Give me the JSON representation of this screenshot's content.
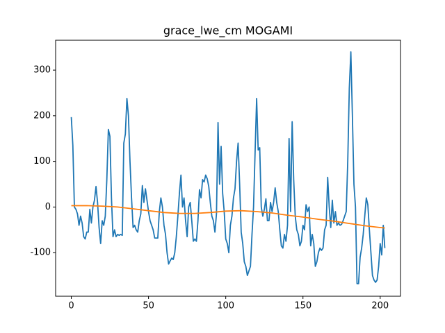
{
  "chart_data": {
    "type": "line",
    "title": "grace_lwe_cm MOGAMI",
    "xlim": [
      -10.15,
      213.15
    ],
    "xticks": [
      0,
      50,
      100,
      150,
      200
    ],
    "ylim": [
      -195.5,
      365.5
    ],
    "yticks": [
      -100,
      0,
      100,
      200,
      300
    ],
    "series": [
      {
        "color": "#1f77b4",
        "x": [
          0,
          1,
          2,
          3,
          4,
          5,
          6,
          7,
          8,
          9,
          10,
          11,
          12,
          13,
          14,
          15,
          16,
          17,
          18,
          19,
          20,
          21,
          22,
          23,
          24,
          25,
          26,
          27,
          28,
          29,
          30,
          31,
          32,
          33,
          34,
          35,
          36,
          37,
          38,
          39,
          40,
          41,
          42,
          43,
          44,
          45,
          46,
          47,
          48,
          49,
          50,
          51,
          52,
          53,
          54,
          55,
          56,
          57,
          58,
          59,
          60,
          61,
          62,
          63,
          64,
          65,
          66,
          67,
          68,
          69,
          70,
          71,
          72,
          73,
          74,
          75,
          76,
          77,
          78,
          79,
          80,
          81,
          82,
          83,
          84,
          85,
          86,
          87,
          88,
          89,
          90,
          91,
          92,
          93,
          94,
          95,
          96,
          97,
          98,
          99,
          100,
          101,
          102,
          103,
          104,
          105,
          106,
          107,
          108,
          109,
          110,
          111,
          112,
          113,
          114,
          115,
          116,
          117,
          118,
          119,
          120,
          121,
          122,
          123,
          124,
          125,
          126,
          127,
          128,
          129,
          130,
          131,
          132,
          133,
          134,
          135,
          136,
          137,
          138,
          139,
          140,
          141,
          142,
          143,
          144,
          145,
          146,
          147,
          148,
          149,
          150,
          151,
          152,
          153,
          154,
          155,
          156,
          157,
          158,
          159,
          160,
          161,
          162,
          163,
          164,
          165,
          166,
          167,
          168,
          169,
          170,
          171,
          172,
          173,
          174,
          175,
          176,
          177,
          178,
          179,
          180,
          181,
          182,
          183,
          184,
          185,
          186,
          187,
          188,
          189,
          190,
          191,
          192,
          193,
          194,
          195,
          196,
          197,
          198,
          199,
          200,
          201,
          202,
          203
        ],
        "values": [
          197,
          135,
          0,
          -5,
          -15,
          -40,
          -20,
          -35,
          -65,
          -70,
          -55,
          -55,
          -5,
          -35,
          0,
          15,
          45,
          10,
          -45,
          -80,
          -30,
          -40,
          -20,
          60,
          170,
          155,
          20,
          -65,
          -50,
          -65,
          -60,
          -62,
          -60,
          -62,
          140,
          160,
          238,
          200,
          100,
          20,
          -45,
          -40,
          -50,
          -55,
          -30,
          -15,
          47,
          10,
          40,
          15,
          -10,
          -30,
          -40,
          -50,
          -68,
          -68,
          -68,
          -10,
          20,
          0,
          -40,
          -60,
          -100,
          -125,
          -118,
          -112,
          -115,
          -100,
          -65,
          -20,
          30,
          70,
          0,
          20,
          -30,
          -65,
          0,
          10,
          -30,
          -75,
          -70,
          -75,
          -30,
          38,
          20,
          60,
          55,
          70,
          62,
          45,
          10,
          -20,
          -30,
          -55,
          -15,
          185,
          50,
          133,
          30,
          -10,
          -70,
          -80,
          -100,
          -40,
          -20,
          20,
          40,
          100,
          140,
          50,
          -55,
          -80,
          -120,
          -130,
          -150,
          -140,
          -130,
          -60,
          0,
          120,
          238,
          125,
          130,
          0,
          -20,
          -5,
          18,
          -30,
          -30,
          10,
          -10,
          10,
          42,
          10,
          -10,
          -50,
          -85,
          -90,
          -60,
          -75,
          -40,
          150,
          -10,
          187,
          60,
          -20,
          -50,
          -60,
          -85,
          -75,
          -40,
          -50,
          5,
          -10,
          0,
          -85,
          -60,
          -80,
          -130,
          -120,
          -100,
          -90,
          -95,
          -90,
          -50,
          -40,
          65,
          0,
          -45,
          15,
          -35,
          -10,
          -40,
          -35,
          -40,
          -38,
          -30,
          -20,
          -10,
          100,
          260,
          340,
          200,
          50,
          0,
          -168,
          -168,
          -110,
          -90,
          -60,
          -20,
          20,
          5,
          -50,
          -100,
          -150,
          -160,
          -165,
          -160,
          -130,
          -80,
          -105,
          -40,
          -90
        ]
      },
      {
        "color": "#ff7f0e",
        "x": [
          0,
          10,
          20,
          30,
          40,
          50,
          60,
          70,
          80,
          90,
          100,
          110,
          120,
          130,
          140,
          150,
          160,
          170,
          180,
          190,
          200,
          203
        ],
        "values": [
          3,
          3,
          2,
          0,
          -4,
          -8,
          -12,
          -14,
          -14,
          -12,
          -9,
          -8,
          -10,
          -13,
          -18,
          -22,
          -27,
          -31,
          -36,
          -41,
          -45,
          -46
        ]
      }
    ]
  }
}
